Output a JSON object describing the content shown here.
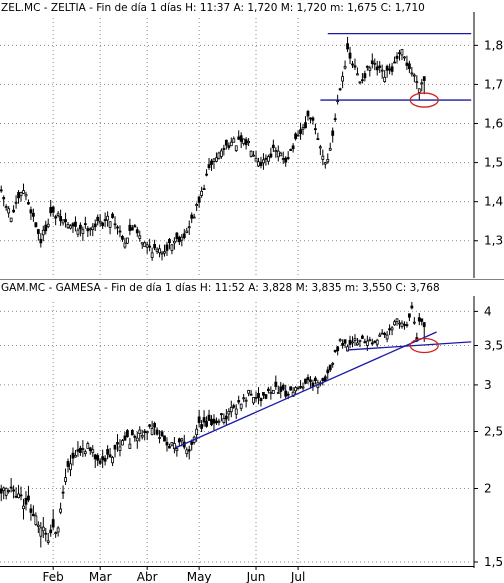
{
  "chart_data": [
    {
      "type": "candlestick",
      "header": "ZEL.MC - ZELTIA - Fin de día 1 días  H: 11:37  A: 1,720  M: 1,720  m: 1,675  C: 1,710",
      "y_ticks": [
        1.3,
        1.4,
        1.5,
        1.6,
        1.7,
        1.8
      ],
      "y_tick_labels": [
        "1,3",
        "1,4",
        "1,5",
        "1,6",
        "1,7",
        "1,8"
      ],
      "ylim": [
        1.22,
        1.87
      ],
      "grid": true,
      "waypoints": [
        [
          0,
          1.42
        ],
        [
          4,
          1.36
        ],
        [
          9,
          1.43
        ],
        [
          12,
          1.38
        ],
        [
          16,
          1.3
        ],
        [
          20,
          1.37
        ],
        [
          30,
          1.33
        ],
        [
          38,
          1.34
        ],
        [
          45,
          1.36
        ],
        [
          50,
          1.3
        ],
        [
          54,
          1.34
        ],
        [
          58,
          1.29
        ],
        [
          64,
          1.27
        ],
        [
          70,
          1.3
        ],
        [
          75,
          1.32
        ],
        [
          80,
          1.4
        ],
        [
          85,
          1.5
        ],
        [
          92,
          1.55
        ],
        [
          100,
          1.55
        ],
        [
          105,
          1.5
        ],
        [
          110,
          1.53
        ],
        [
          115,
          1.51
        ],
        [
          119,
          1.55
        ],
        [
          125,
          1.62
        ],
        [
          128,
          1.56
        ],
        [
          131,
          1.5
        ],
        [
          133,
          1.53
        ],
        [
          137,
          1.7
        ],
        [
          140,
          1.78
        ],
        [
          145,
          1.71
        ],
        [
          150,
          1.75
        ],
        [
          155,
          1.72
        ],
        [
          158,
          1.74
        ],
        [
          162,
          1.78
        ],
        [
          166,
          1.73
        ],
        [
          169,
          1.7
        ],
        [
          171,
          1.71
        ]
      ],
      "annotations": [
        {
          "type": "hline",
          "y": 1.83,
          "x_from": 132,
          "x_to": 190,
          "color": "#1a1aa8"
        },
        {
          "type": "hline",
          "y": 1.66,
          "x_from": 129,
          "x_to": 190,
          "color": "#1a1aa8"
        },
        {
          "type": "ellipse",
          "x": 171,
          "y": 1.66,
          "color": "#d42020"
        }
      ]
    },
    {
      "type": "candlestick",
      "header": "GAM.MC - GAMESA - Fin de día 1 días  H: 11:52  A: 3,828  M: 3,835  m: 3,550  C: 3,768",
      "y_scale": "log",
      "y_ticks": [
        1.5,
        2,
        2.5,
        3,
        3.5,
        4
      ],
      "y_tick_labels": [
        "1,5",
        "2",
        "2,5",
        "3",
        "3,5",
        "4"
      ],
      "ylim": [
        1.5,
        4.15
      ],
      "grid": true,
      "waypoints": [
        [
          0,
          2.0
        ],
        [
          5,
          1.95
        ],
        [
          10,
          1.9
        ],
        [
          14,
          1.78
        ],
        [
          17,
          1.68
        ],
        [
          20,
          1.65
        ],
        [
          23,
          1.75
        ],
        [
          26,
          2.1
        ],
        [
          30,
          2.25
        ],
        [
          35,
          2.35
        ],
        [
          40,
          2.25
        ],
        [
          45,
          2.3
        ],
        [
          50,
          2.4
        ],
        [
          55,
          2.45
        ],
        [
          60,
          2.55
        ],
        [
          64,
          2.45
        ],
        [
          67,
          2.4
        ],
        [
          70,
          2.35
        ],
        [
          73,
          2.4
        ],
        [
          76,
          2.35
        ],
        [
          80,
          2.55
        ],
        [
          85,
          2.58
        ],
        [
          90,
          2.65
        ],
        [
          95,
          2.75
        ],
        [
          100,
          2.9
        ],
        [
          105,
          2.85
        ],
        [
          110,
          2.95
        ],
        [
          115,
          2.9
        ],
        [
          120,
          2.95
        ],
        [
          124,
          3.05
        ],
        [
          128,
          3.0
        ],
        [
          131,
          3.05
        ],
        [
          134,
          3.3
        ],
        [
          137,
          3.55
        ],
        [
          140,
          3.5
        ],
        [
          145,
          3.6
        ],
        [
          150,
          3.55
        ],
        [
          155,
          3.65
        ],
        [
          160,
          3.85
        ],
        [
          164,
          3.75
        ],
        [
          166,
          4.05
        ],
        [
          168,
          3.6
        ],
        [
          169,
          3.85
        ],
        [
          171,
          3.77
        ]
      ],
      "annotations": [
        {
          "type": "trendline",
          "from": [
            70,
            2.34
          ],
          "to": [
            176,
            3.69
          ],
          "color": "#1a1aa8"
        },
        {
          "type": "trendline",
          "from": [
            140,
            3.44
          ],
          "to": [
            190,
            3.55
          ],
          "color": "#1a1aa8"
        },
        {
          "type": "ellipse",
          "x": 171,
          "y": 3.5,
          "color": "#d42020"
        }
      ]
    }
  ],
  "x_axis": {
    "month_labels": [
      "Feb",
      "Mar",
      "Abr",
      "May",
      "Jun",
      "Jul"
    ],
    "month_positions": [
      21,
      40,
      59,
      80,
      103,
      120
    ]
  }
}
